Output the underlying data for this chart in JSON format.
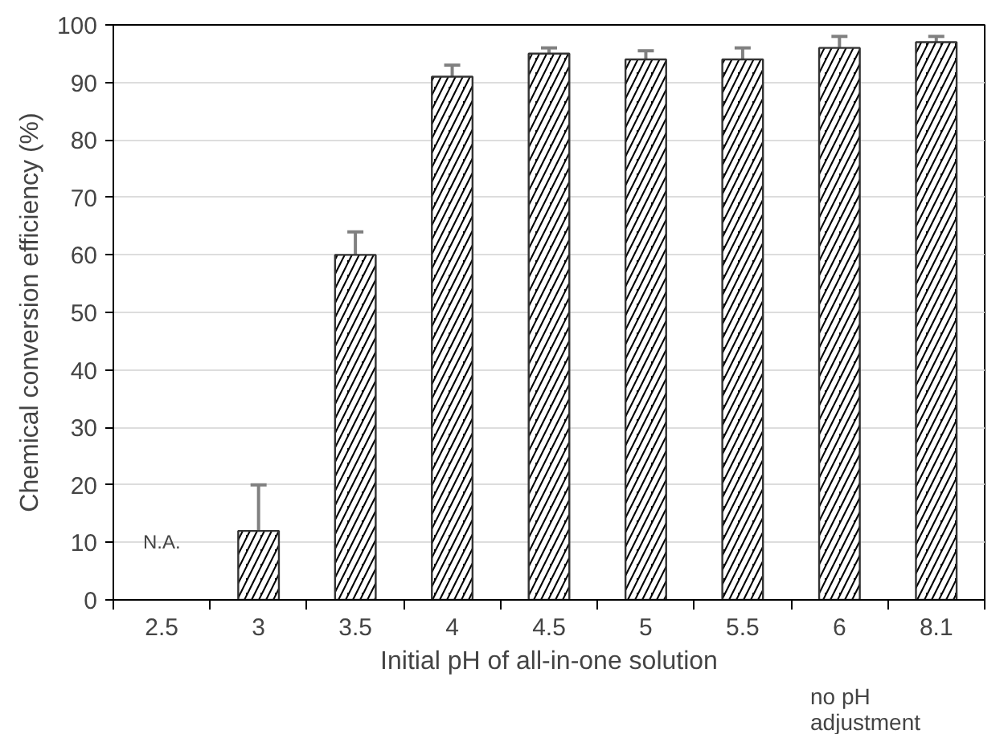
{
  "chart_data": {
    "type": "bar",
    "xlabel": "Initial pH of all-in-one solution",
    "ylabel": "Chemical conversion efficiency (%)",
    "categories": [
      "2.5",
      "3",
      "3.5",
      "4",
      "4.5",
      "5",
      "5.5",
      "6",
      "8.1"
    ],
    "values": [
      null,
      12,
      60,
      91,
      95,
      94,
      94,
      96,
      97
    ],
    "errors": [
      null,
      8,
      4,
      2,
      1,
      1.5,
      2,
      2,
      1
    ],
    "color": "#000000",
    "ylim": [
      0,
      100
    ],
    "yticks": [
      0,
      10,
      20,
      30,
      40,
      50,
      60,
      70,
      80,
      90,
      100
    ],
    "grid": "y",
    "annotations": [
      "N.A.",
      "no pH adjustment"
    ]
  }
}
